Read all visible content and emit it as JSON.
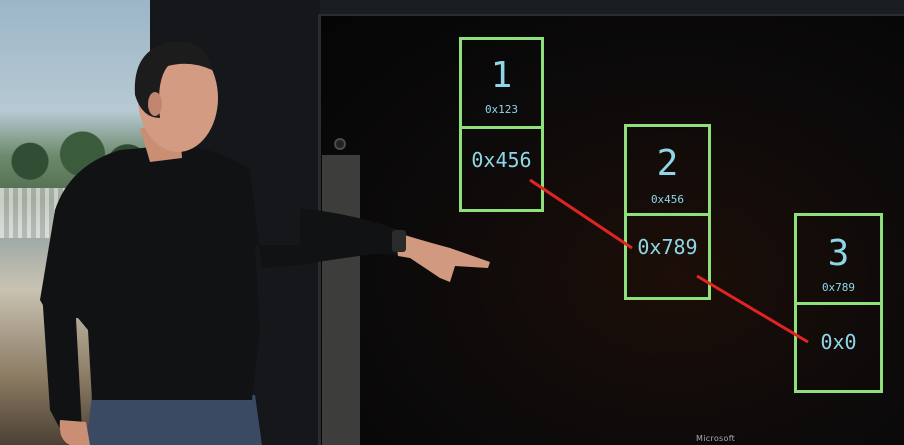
{
  "slide": {
    "nodes": [
      {
        "value": "1",
        "address": "0x123",
        "next": "0x456"
      },
      {
        "value": "2",
        "address": "0x456",
        "next": "0x789"
      },
      {
        "value": "3",
        "address": "0x789",
        "next": "0x0"
      }
    ],
    "link_color": "#e02424",
    "box_color": "#8fe07a",
    "text_color": "#8fd6e8"
  },
  "screen": {
    "brand": "Microsoft"
  }
}
